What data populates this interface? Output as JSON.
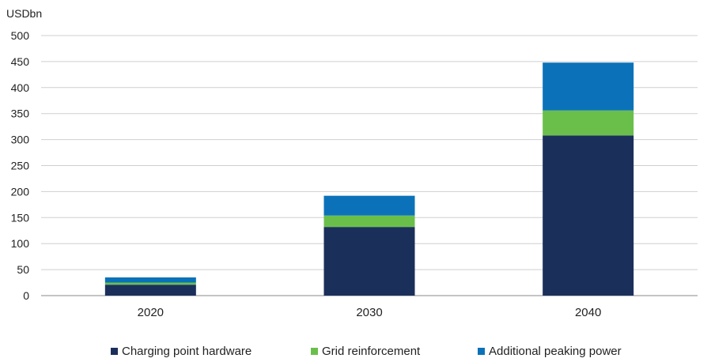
{
  "chart_data": {
    "type": "bar",
    "stacked": true,
    "unit_label": "USDbn",
    "categories": [
      "2020",
      "2030",
      "2040"
    ],
    "series": [
      {
        "name": "Charging point hardware",
        "color": "#1b2f5b",
        "values": [
          21,
          132,
          308
        ]
      },
      {
        "name": "Grid reinforcement",
        "color": "#6abf4b",
        "values": [
          4,
          22,
          48
        ]
      },
      {
        "name": "Additional peaking power",
        "color": "#0b72b9",
        "values": [
          10,
          38,
          92
        ]
      }
    ],
    "y_ticks": [
      0,
      50,
      100,
      150,
      200,
      250,
      300,
      350,
      400,
      450,
      500
    ],
    "ylim": [
      0,
      500
    ],
    "grid": true,
    "legend": "bottom"
  }
}
